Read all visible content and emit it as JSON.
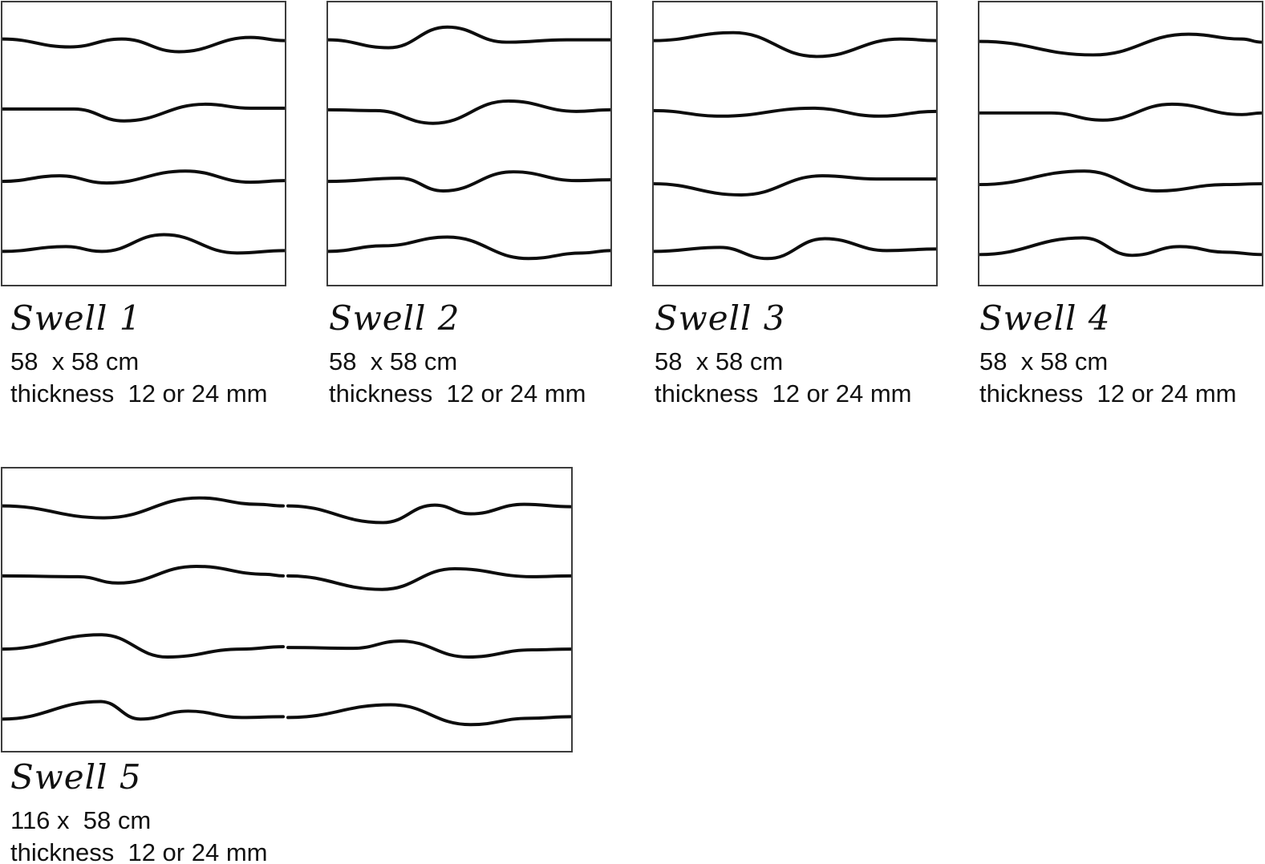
{
  "style": {
    "background": "#ffffff",
    "line_color": "#0d0d0d",
    "border_color": "#3c3c3c",
    "text_color": "#111111"
  },
  "panels": [
    {
      "name": "Swell 1",
      "size": "58  x 58 cm",
      "thickness": "thickness  12 or 24 mm",
      "view": [
        355,
        355
      ],
      "waves": [
        [
          [
            0,
            46
          ],
          [
            85,
            56
          ],
          [
            150,
            46
          ],
          [
            222,
            62
          ],
          [
            312,
            44
          ],
          [
            355,
            48
          ]
        ],
        [
          [
            0,
            134
          ],
          [
            90,
            134
          ],
          [
            153,
            149
          ],
          [
            255,
            128
          ],
          [
            312,
            133
          ],
          [
            355,
            133
          ]
        ],
        [
          [
            0,
            225
          ],
          [
            72,
            218
          ],
          [
            131,
            227
          ],
          [
            230,
            212
          ],
          [
            312,
            226
          ],
          [
            355,
            224
          ]
        ],
        [
          [
            0,
            313
          ],
          [
            80,
            307
          ],
          [
            125,
            313
          ],
          [
            203,
            292
          ],
          [
            295,
            315
          ],
          [
            355,
            312
          ]
        ]
      ]
    },
    {
      "name": "Swell 2",
      "size": "58  x 58 cm",
      "thickness": "thickness  12 or 24 mm",
      "view": [
        355,
        355
      ],
      "waves": [
        [
          [
            0,
            47
          ],
          [
            76,
            57
          ],
          [
            150,
            31
          ],
          [
            224,
            50
          ],
          [
            300,
            47
          ],
          [
            355,
            47
          ]
        ],
        [
          [
            0,
            135
          ],
          [
            60,
            136
          ],
          [
            132,
            152
          ],
          [
            227,
            124
          ],
          [
            312,
            137
          ],
          [
            355,
            135
          ]
        ],
        [
          [
            0,
            225
          ],
          [
            90,
            221
          ],
          [
            145,
            237
          ],
          [
            233,
            213
          ],
          [
            312,
            224
          ],
          [
            355,
            223
          ]
        ],
        [
          [
            0,
            313
          ],
          [
            70,
            306
          ],
          [
            150,
            295
          ],
          [
            252,
            322
          ],
          [
            320,
            315
          ],
          [
            355,
            312
          ]
        ]
      ]
    },
    {
      "name": "Swell 3",
      "size": "58  x 58 cm",
      "thickness": "thickness  12 or 24 mm",
      "view": [
        355,
        355
      ],
      "waves": [
        [
          [
            0,
            48
          ],
          [
            100,
            38
          ],
          [
            205,
            68
          ],
          [
            310,
            46
          ],
          [
            355,
            48
          ]
        ],
        [
          [
            0,
            136
          ],
          [
            85,
            143
          ],
          [
            200,
            133
          ],
          [
            283,
            143
          ],
          [
            355,
            137
          ]
        ],
        [
          [
            0,
            228
          ],
          [
            110,
            242
          ],
          [
            212,
            218
          ],
          [
            280,
            222
          ],
          [
            355,
            222
          ]
        ],
        [
          [
            0,
            313
          ],
          [
            83,
            308
          ],
          [
            143,
            322
          ],
          [
            215,
            297
          ],
          [
            293,
            312
          ],
          [
            355,
            310
          ]
        ]
      ]
    },
    {
      "name": "Swell 4",
      "size": "58  x 58 cm",
      "thickness": "thickness  12 or 24 mm",
      "view": [
        355,
        355
      ],
      "waves": [
        [
          [
            0,
            49
          ],
          [
            143,
            66
          ],
          [
            263,
            40
          ],
          [
            330,
            46
          ],
          [
            355,
            50
          ]
        ],
        [
          [
            0,
            139
          ],
          [
            90,
            139
          ],
          [
            155,
            148
          ],
          [
            242,
            128
          ],
          [
            330,
            141
          ],
          [
            355,
            139
          ]
        ],
        [
          [
            0,
            229
          ],
          [
            132,
            212
          ],
          [
            223,
            237
          ],
          [
            310,
            229
          ],
          [
            355,
            228
          ]
        ],
        [
          [
            0,
            317
          ],
          [
            130,
            296
          ],
          [
            192,
            318
          ],
          [
            252,
            307
          ],
          [
            310,
            314
          ],
          [
            355,
            317
          ]
        ]
      ]
    },
    {
      "name": "Swell 5",
      "size": "116 x  58 cm",
      "thickness": "thickness  12 or 24 mm",
      "view": [
        713,
        355
      ],
      "waves": [
        [
          [
            0,
            47
          ],
          [
            128,
            62
          ],
          [
            247,
            37
          ],
          [
            320,
            45
          ],
          [
            352,
            47
          ]
        ],
        [
          [
            358,
            47
          ],
          [
            477,
            68
          ],
          [
            542,
            46
          ],
          [
            587,
            57
          ],
          [
            654,
            45
          ],
          [
            713,
            48
          ]
        ],
        [
          [
            0,
            135
          ],
          [
            95,
            136
          ],
          [
            145,
            144
          ],
          [
            243,
            123
          ],
          [
            330,
            133
          ],
          [
            352,
            135
          ]
        ],
        [
          [
            358,
            135
          ],
          [
            476,
            152
          ],
          [
            567,
            126
          ],
          [
            664,
            136
          ],
          [
            713,
            135
          ]
        ],
        [
          [
            0,
            227
          ],
          [
            123,
            209
          ],
          [
            207,
            237
          ],
          [
            300,
            227
          ],
          [
            352,
            224
          ]
        ],
        [
          [
            358,
            225
          ],
          [
            440,
            226
          ],
          [
            499,
            217
          ],
          [
            584,
            237
          ],
          [
            664,
            228
          ],
          [
            713,
            227
          ]
        ],
        [
          [
            0,
            315
          ],
          [
            123,
            293
          ],
          [
            173,
            315
          ],
          [
            233,
            305
          ],
          [
            300,
            313
          ],
          [
            352,
            312
          ]
        ],
        [
          [
            358,
            313
          ],
          [
            487,
            297
          ],
          [
            587,
            322
          ],
          [
            660,
            314
          ],
          [
            713,
            312
          ]
        ]
      ]
    }
  ]
}
